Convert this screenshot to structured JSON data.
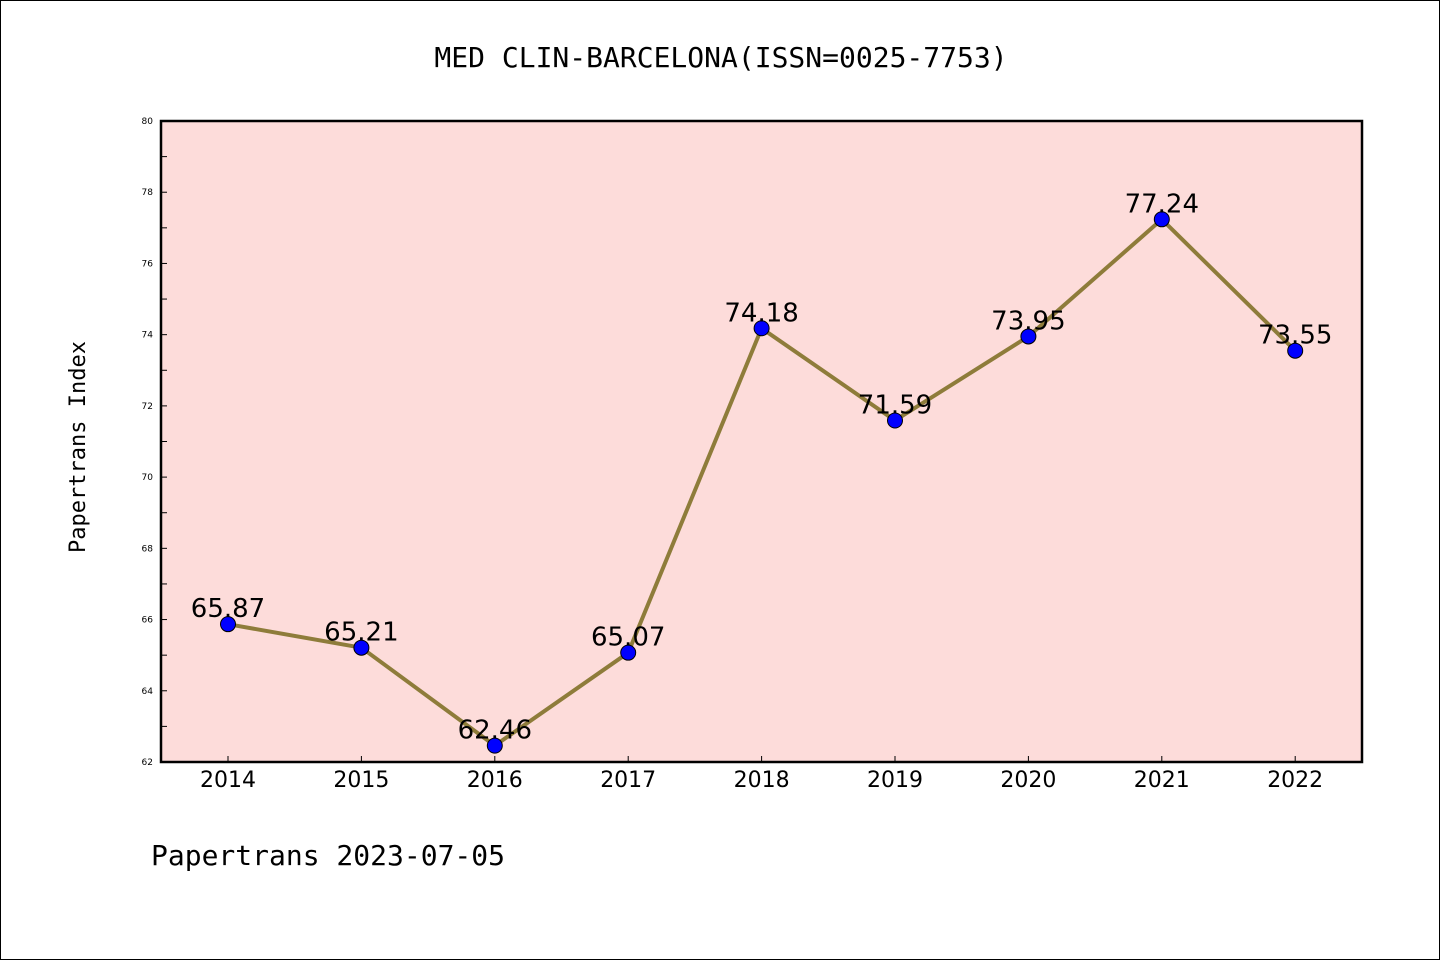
{
  "chart_data": {
    "type": "line",
    "title": "MED CLIN-BARCELONA(ISSN=0025-7753)",
    "ylabel": "Papertrans Index",
    "xlabel": "",
    "footer": "Papertrans 2023-07-05",
    "categories": [
      "2014",
      "2015",
      "2016",
      "2017",
      "2018",
      "2019",
      "2020",
      "2021",
      "2022"
    ],
    "values": [
      65.87,
      65.21,
      62.46,
      65.07,
      74.18,
      71.59,
      73.95,
      77.24,
      73.55
    ],
    "data_labels": [
      "65.87",
      "65.21",
      "62.46",
      "65.07",
      "74.18",
      "71.59",
      "73.95",
      "77.24",
      "73.55"
    ],
    "ylim": [
      62,
      80
    ],
    "yticks": [
      "62",
      "64",
      "66",
      "68",
      "70",
      "72",
      "74",
      "76",
      "78",
      "80"
    ],
    "grid": false,
    "legend": "none",
    "colors": {
      "plot_background": "#fddcda",
      "line": "#8e7c3a",
      "marker": "#0000ff",
      "axes": "#000000"
    }
  }
}
